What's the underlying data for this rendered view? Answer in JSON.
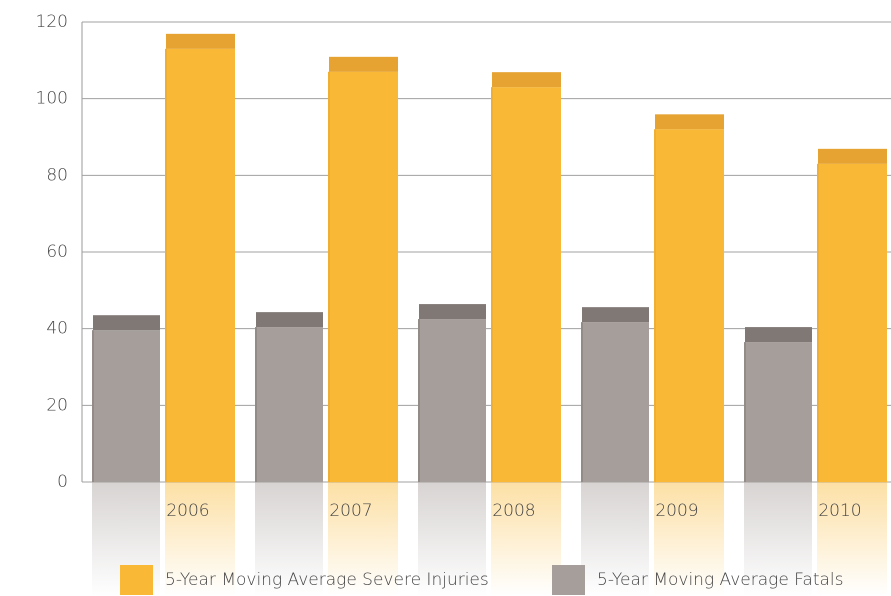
{
  "chart_data": {
    "type": "bar",
    "categories": [
      "2006",
      "2007",
      "2008",
      "2009",
      "2010"
    ],
    "series": [
      {
        "name": "5-Year Moving Average Fatals",
        "color": "#a69e9b",
        "top_color": "#807875",
        "values": [
          39.6,
          40.4,
          42.5,
          41.7,
          36.5
        ]
      },
      {
        "name": "5-Year Moving Average Severe Injuries",
        "color": "#f9b936",
        "top_color": "#e6a332",
        "values": [
          113,
          107,
          103,
          92,
          83
        ]
      }
    ],
    "legend_order": [
      1,
      0
    ],
    "ylim": [
      0,
      120
    ],
    "yticks": [
      0,
      20,
      40,
      60,
      80,
      100,
      120
    ],
    "grid": true
  }
}
